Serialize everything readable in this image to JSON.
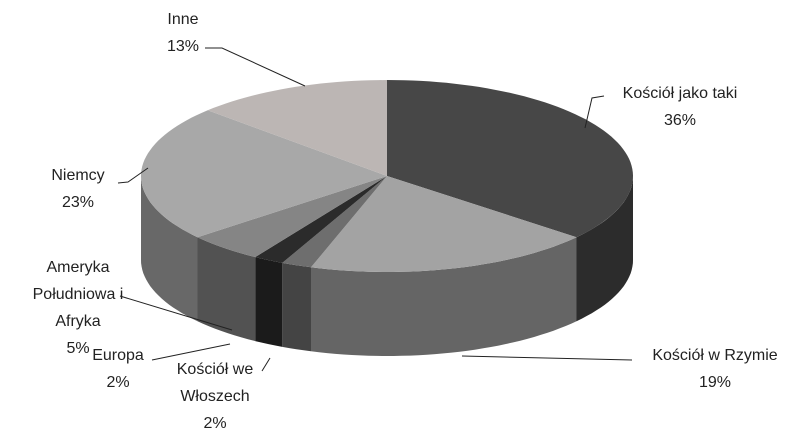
{
  "chart_data": {
    "type": "pie",
    "categories": [
      "Kościół jako taki",
      "Kościół w Rzymie",
      "Kościół we Włoszech",
      "Europa",
      "Ameryka Południowa i Afryka",
      "Niemcy",
      "Inne"
    ],
    "values": [
      36,
      19,
      2,
      2,
      5,
      23,
      13
    ],
    "value_labels": [
      "36%",
      "19%",
      "2%",
      "2%",
      "5%",
      "23%",
      "13%"
    ],
    "colors": [
      "#474747",
      "#a3a3a3",
      "#6e6e6e",
      "#2b2b2b",
      "#858585",
      "#a8a8a8",
      "#bcb6b4"
    ]
  }
}
